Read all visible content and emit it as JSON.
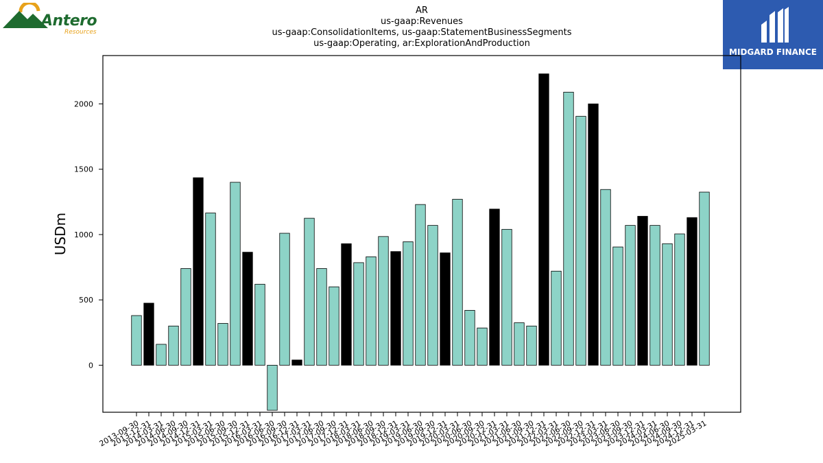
{
  "header": {
    "title_lines": [
      "AR",
      "us-gaap:Revenues",
      "us-gaap:ConsolidationItems, us-gaap:StatementBusinessSegments",
      "us-gaap:Operating, ar:ExplorationAndProduction"
    ]
  },
  "logos": {
    "left_word": "Antero",
    "left_sub": "Resources",
    "right_name": "MIDGARD FINANCE"
  },
  "chart_data": {
    "type": "bar",
    "ylabel": "USDm",
    "xlabel": "",
    "ylim": [
      -360,
      2370
    ],
    "yticks": [
      0,
      500,
      1000,
      1500,
      2000
    ],
    "grid": false,
    "colors": {
      "regular": "#8dd3c7",
      "year_end": "#000000",
      "edge": "#000000"
    },
    "categories": [
      "2013-09-30",
      "2013-12-31",
      "2014-03-31",
      "2014-06-30",
      "2014-09-30",
      "2014-12-31",
      "2015-03-31",
      "2015-06-30",
      "2015-09-30",
      "2015-12-31",
      "2016-03-31",
      "2016-06-30",
      "2016-09-30",
      "2016-12-31",
      "2017-03-31",
      "2017-06-30",
      "2017-09-30",
      "2017-12-31",
      "2018-03-31",
      "2018-06-30",
      "2018-09-30",
      "2018-12-31",
      "2019-03-31",
      "2019-06-30",
      "2019-09-30",
      "2019-12-31",
      "2020-03-31",
      "2020-06-30",
      "2020-09-30",
      "2020-12-31",
      "2021-03-31",
      "2021-06-30",
      "2021-09-30",
      "2021-12-31",
      "2022-03-31",
      "2022-06-30",
      "2022-09-30",
      "2022-12-31",
      "2023-03-31",
      "2023-06-30",
      "2023-09-30",
      "2023-12-31",
      "2024-03-31",
      "2024-06-30",
      "2024-09-30",
      "2024-12-31",
      "2025-03-31"
    ],
    "values": [
      380,
      475,
      160,
      300,
      740,
      1435,
      1165,
      320,
      1400,
      865,
      620,
      -345,
      1010,
      40,
      1125,
      740,
      600,
      930,
      785,
      830,
      985,
      870,
      945,
      1230,
      1070,
      860,
      1270,
      420,
      285,
      1195,
      1040,
      325,
      300,
      2230,
      720,
      2090,
      1905,
      2000,
      1345,
      905,
      1070,
      1140,
      1070,
      930,
      1005,
      1130,
      1325
    ],
    "year_end_flags": [
      0,
      1,
      0,
      0,
      0,
      1,
      0,
      0,
      0,
      1,
      0,
      0,
      0,
      1,
      0,
      0,
      0,
      1,
      0,
      0,
      0,
      1,
      0,
      0,
      0,
      1,
      0,
      0,
      0,
      1,
      0,
      0,
      0,
      1,
      0,
      0,
      0,
      1,
      0,
      0,
      0,
      1,
      0,
      0,
      0,
      1,
      0
    ]
  }
}
